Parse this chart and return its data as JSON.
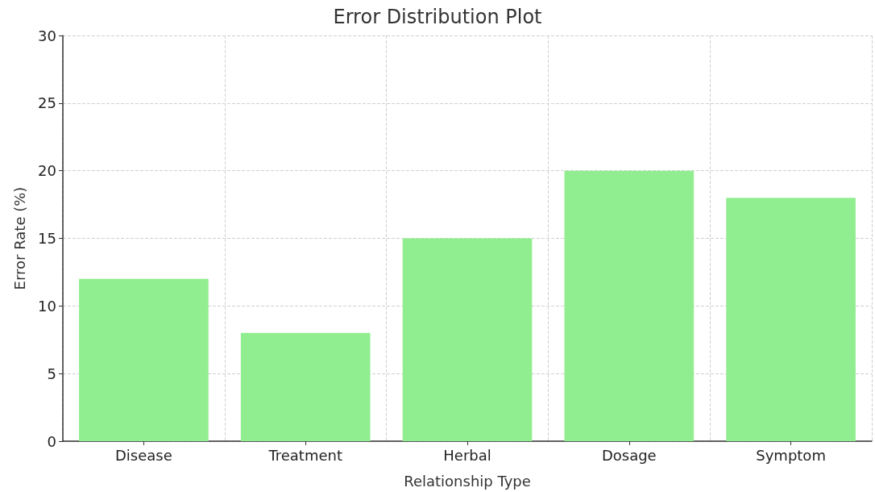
{
  "chart_data": {
    "type": "bar",
    "title": "Error Distribution Plot",
    "xlabel": "Relationship Type",
    "ylabel": "Error Rate (%)",
    "categories": [
      "Disease",
      "Treatment",
      "Herbal",
      "Dosage",
      "Symptom"
    ],
    "values": [
      12,
      8,
      15,
      20,
      18
    ],
    "color": "#90ee90",
    "ylim": [
      0,
      30
    ],
    "yticks": [
      0,
      5,
      10,
      15,
      20,
      25,
      30
    ],
    "grid": true
  }
}
